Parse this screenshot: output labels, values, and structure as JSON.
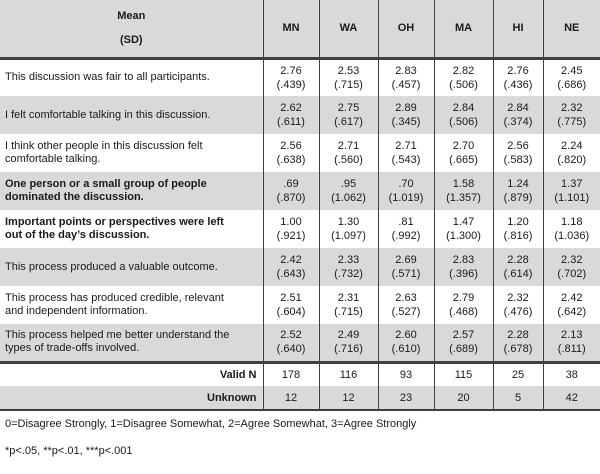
{
  "colors": {
    "row_shade": "#d9d9d9",
    "border": "#3f3f3f",
    "text": "#1a1a1a"
  },
  "table": {
    "header": {
      "line1": "Mean",
      "line2": "(SD)",
      "states": [
        "MN",
        "WA",
        "OH",
        "MA",
        "HI",
        "NE"
      ]
    },
    "rows": [
      {
        "question": "This discussion was fair to all participants.",
        "bold": false,
        "shaded": false,
        "means": [
          "2.76",
          "2.53",
          "2.83",
          "2.82",
          "2.76",
          "2.45"
        ],
        "sds": [
          "(.439)",
          "(.715)",
          "(.457)",
          "(.506)",
          "(.436)",
          "(.686)"
        ]
      },
      {
        "question": "I felt comfortable talking in this discussion.",
        "bold": false,
        "shaded": true,
        "means": [
          "2.62",
          "2.75",
          "2.89",
          "2.84",
          "2.84",
          "2.32"
        ],
        "sds": [
          "(.611)",
          "(.617)",
          "(.345)",
          "(.506)",
          "(.374)",
          "(.775)"
        ]
      },
      {
        "question": "I think other people in this discussion felt comfortable talking.",
        "bold": false,
        "shaded": false,
        "means": [
          "2.56",
          "2.71",
          "2.71",
          "2.70",
          "2.56",
          "2.24"
        ],
        "sds": [
          "(.638)",
          "(.560)",
          "(.543)",
          "(.665)",
          "(.583)",
          "(.820)"
        ]
      },
      {
        "question": "One person or a small group of people dominated the discussion.",
        "bold": true,
        "shaded": true,
        "means": [
          ".69",
          ".95",
          ".70",
          "1.58",
          "1.24",
          "1.37"
        ],
        "sds": [
          "(.870)",
          "(1.062)",
          "(1.019)",
          "(1.357)",
          "(.879)",
          "(1.101)"
        ]
      },
      {
        "question": "Important points or perspectives were left out of the day’s discussion.",
        "bold": true,
        "shaded": false,
        "means": [
          "1.00",
          "1.30",
          ".81",
          "1.47",
          "1.20",
          "1.18"
        ],
        "sds": [
          "(.921)",
          "(1.097)",
          "(.992)",
          "(1.300)",
          "(.816)",
          "(1.036)"
        ]
      },
      {
        "question": "This process produced a valuable outcome.",
        "bold": false,
        "shaded": true,
        "means": [
          "2.42",
          "2.33",
          "2.69",
          "2.83",
          "2.28",
          "2.32"
        ],
        "sds": [
          "(.643)",
          "(.732)",
          "(.571)",
          "(.396)",
          "(.614)",
          "(.702)"
        ]
      },
      {
        "question": "This process has produced credible, relevant and independent information.",
        "bold": false,
        "shaded": false,
        "means": [
          "2.51",
          "2.31",
          "2.63",
          "2.79",
          "2.32",
          "2.42"
        ],
        "sds": [
          "(.604)",
          "(.715)",
          "(.527)",
          "(.468)",
          "(.476)",
          "(.642)"
        ]
      },
      {
        "question": "This process helped me better understand the types of trade-offs involved.",
        "bold": false,
        "shaded": true,
        "means": [
          "2.52",
          "2.49",
          "2.60",
          "2.57",
          "2.28",
          "2.13"
        ],
        "sds": [
          "(.640)",
          "(.716)",
          "(.610)",
          "(.689)",
          "(.678)",
          "(.811)"
        ]
      }
    ],
    "summary_rows": [
      {
        "label": "Valid N",
        "shaded": false,
        "values": [
          "178",
          "116",
          "93",
          "115",
          "25",
          "38"
        ]
      },
      {
        "label": "Unknown",
        "shaded": true,
        "values": [
          "12",
          "12",
          "23",
          "20",
          "5",
          "42"
        ]
      }
    ]
  },
  "footnotes": {
    "scale": "0=Disagree Strongly, 1=Disagree Somewhat, 2=Agree Somewhat, 3=Agree Strongly",
    "significance": "*p<.05, **p<.01, ***p<.001"
  }
}
